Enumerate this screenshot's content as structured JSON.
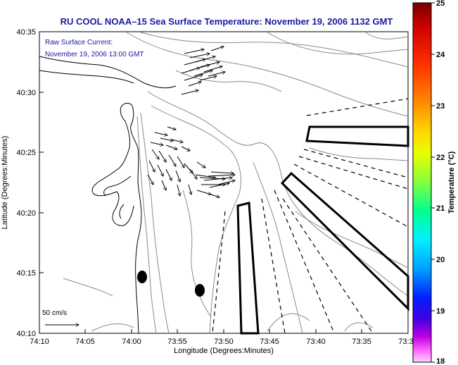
{
  "title": "RU COOL  NOAA–15  Sea Surface Temperature:  November 19, 2006 1132 GMT",
  "overlay": {
    "line1": "Raw Surface Current:",
    "line2": "November 19, 2006 13:00 GMT"
  },
  "scale_label": "50 cm/s",
  "x_axis": {
    "label": "Longitude (Degrees:Minutes)",
    "ticks": [
      "74:10",
      "74:05",
      "74:00",
      "73:55",
      "73:50",
      "73:45",
      "73:40",
      "73:35",
      "73:3"
    ]
  },
  "y_axis": {
    "label": "Latitude (Degrees:Minutes)",
    "ticks": [
      "40:35",
      "40:30",
      "40:25",
      "40:20",
      "40:15",
      "40:10"
    ]
  },
  "colorbar": {
    "label": "Temperature (°C)",
    "ticks": [
      "25",
      "24",
      "23",
      "22",
      "21",
      "20",
      "19",
      "18"
    ],
    "range": [
      18,
      25
    ]
  },
  "colors": {
    "title": "#1a1aa0",
    "overlay_text": "#1a1aa0",
    "contour": "#8a8a8a",
    "coastline": "#000000"
  }
}
